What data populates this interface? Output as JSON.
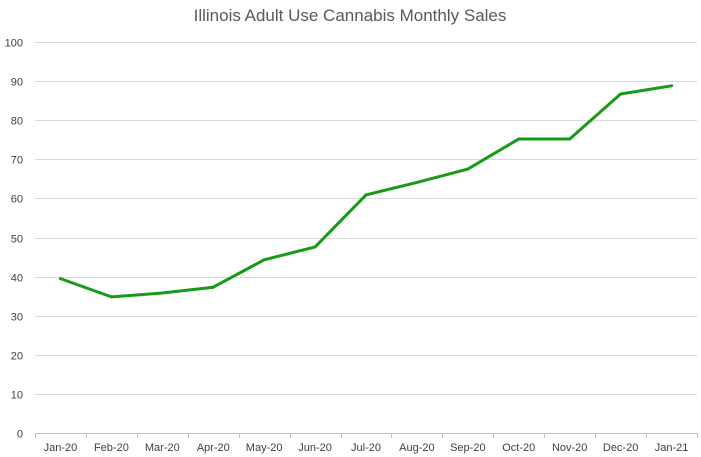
{
  "chart_data": {
    "type": "line",
    "title": "Illinois Adult Use Cannabis Monthly Sales",
    "xlabel": "",
    "ylabel": "",
    "categories": [
      "Jan-20",
      "Feb-20",
      "Mar-20",
      "Apr-20",
      "May-20",
      "Jun-20",
      "Jul-20",
      "Aug-20",
      "Sep-20",
      "Oct-20",
      "Nov-20",
      "Dec-20",
      "Jan-21"
    ],
    "series": [
      {
        "name": "Monthly Sales",
        "values": [
          39.5,
          34.8,
          35.8,
          37.3,
          44.3,
          47.6,
          60.9,
          64.1,
          67.5,
          75.2,
          75.2,
          86.7,
          88.8
        ],
        "color": "#169b16"
      }
    ],
    "ylim": [
      0,
      100
    ],
    "yticks": [
      "0",
      "10",
      "20",
      "30",
      "40",
      "50",
      "60",
      "70",
      "80",
      "90",
      "100"
    ],
    "grid": true,
    "legend": "none"
  }
}
